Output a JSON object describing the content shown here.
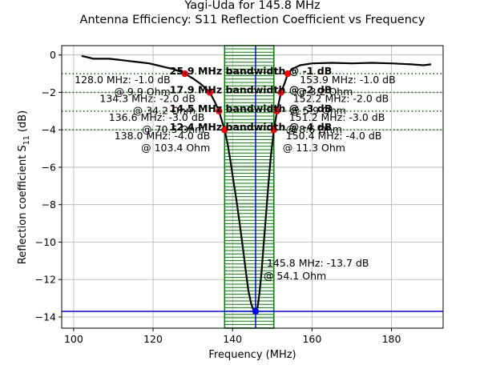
{
  "chart_data": {
    "type": "line",
    "title_lines": [
      "Yagi-Uda for 145.8 MHz",
      "Antenna Efficiency: S11 Reflection Coefficient vs Frequency"
    ],
    "xlabel": "Frequency (MHz)",
    "ylabel_main": "Reflection coefficient S",
    "ylabel_sub": "11",
    "ylabel_unit": " (dB)",
    "xlim": [
      97,
      193
    ],
    "ylim": [
      -14.6,
      0.5
    ],
    "xticks": [
      100,
      120,
      140,
      160,
      180
    ],
    "yticks": [
      0,
      -2,
      -4,
      -6,
      -8,
      -10,
      -12,
      -14
    ],
    "grid": true,
    "colors": {
      "curve": "#000000",
      "markers": "#ff0000",
      "band": "#008000",
      "center": "#0000ff",
      "levels": "#008000"
    },
    "series": [
      {
        "x": [
          102,
          103.5,
          105,
          107,
          109,
          111,
          113,
          115,
          117,
          119,
          121,
          123,
          125,
          127,
          128,
          130,
          132,
          134.3,
          135.5,
          136.6,
          137.3,
          138,
          138.8,
          139.5,
          140.2,
          141,
          141.8,
          142.6,
          143.3,
          144,
          144.7,
          145.3,
          145.8,
          146.3,
          146.8,
          147.3,
          147.8,
          148.4,
          149,
          149.6,
          150.4,
          151.2,
          152.2,
          153.2,
          153.9,
          155,
          157,
          160,
          165,
          170,
          175,
          180,
          185,
          188,
          190
        ],
        "y": [
          -0.05,
          -0.12,
          -0.2,
          -0.2,
          -0.2,
          -0.25,
          -0.3,
          -0.35,
          -0.4,
          -0.45,
          -0.55,
          -0.65,
          -0.75,
          -0.9,
          -1.0,
          -1.25,
          -1.55,
          -2.0,
          -2.5,
          -3.0,
          -3.5,
          -4.0,
          -4.8,
          -5.7,
          -6.7,
          -7.8,
          -9.0,
          -10.3,
          -11.5,
          -12.6,
          -13.3,
          -13.65,
          -13.7,
          -13.5,
          -12.7,
          -11.6,
          -10.2,
          -8.6,
          -7.0,
          -5.5,
          -4.0,
          -3.0,
          -2.0,
          -1.45,
          -1.0,
          -0.75,
          -0.55,
          -0.45,
          -0.42,
          -0.45,
          -0.42,
          -0.45,
          -0.5,
          -0.55,
          -0.5
        ]
      }
    ],
    "band": [
      138,
      150.4
    ],
    "center": {
      "x": 145.8,
      "y": -13.7
    },
    "levels": [
      -1,
      -2,
      -3,
      -4
    ],
    "marker_points": [
      {
        "x": 128.0,
        "y": -1.0
      },
      {
        "x": 134.3,
        "y": -2.0
      },
      {
        "x": 136.6,
        "y": -3.0
      },
      {
        "x": 138.0,
        "y": -4.0
      },
      {
        "x": 153.9,
        "y": -1.0
      },
      {
        "x": 152.2,
        "y": -2.0
      },
      {
        "x": 151.2,
        "y": -3.0
      },
      {
        "x": 150.4,
        "y": -4.0
      }
    ],
    "bandwidth_labels": [
      {
        "y": -1,
        "text": "25.9 MHz bandwidth @ -1 dB"
      },
      {
        "y": -2,
        "text": "17.9 MHz bandwidth @ -2 dB"
      },
      {
        "y": -3,
        "text": "14.5 MHz bandwidth @ -3 dB"
      },
      {
        "y": -4,
        "text": "12.4 MHz bandwidth @ -4 dB"
      }
    ],
    "left_annotations": [
      {
        "x": 128.0,
        "y": -1.0,
        "line1": "128.0 MHz: -1.0 dB",
        "line2": "@ 9.9 Ohm"
      },
      {
        "x": 134.3,
        "y": -2.0,
        "line1": "134.3 MHz: -2.0 dB",
        "line2": "@ 34.2 Ohm"
      },
      {
        "x": 136.6,
        "y": -3.0,
        "line1": "136.6 MHz: -3.0 dB",
        "line2": "@ 70.5 Ohm"
      },
      {
        "x": 138.0,
        "y": -4.0,
        "line1": "138.0 MHz: -4.0 dB",
        "line2": "@ 103.4 Ohm"
      }
    ],
    "right_annotations": [
      {
        "x": 153.9,
        "y": -1.0,
        "line1": "153.9 MHz: -1.0 dB",
        "line2": "@ 3.2 Ohm"
      },
      {
        "x": 152.2,
        "y": -2.0,
        "line1": "152.2 MHz: -2.0 dB",
        "line2": "@ 5.9 Ohm"
      },
      {
        "x": 151.2,
        "y": -3.0,
        "line1": "151.2 MHz: -3.0 dB",
        "line2": "@ 8.6 Ohm"
      },
      {
        "x": 150.4,
        "y": -4.0,
        "line1": "150.4 MHz: -4.0 dB",
        "line2": "@ 11.3 Ohm"
      }
    ],
    "center_annotation": {
      "line1": "145.8 MHz: -13.7 dB",
      "line2": "@ 54.1 Ohm"
    }
  }
}
